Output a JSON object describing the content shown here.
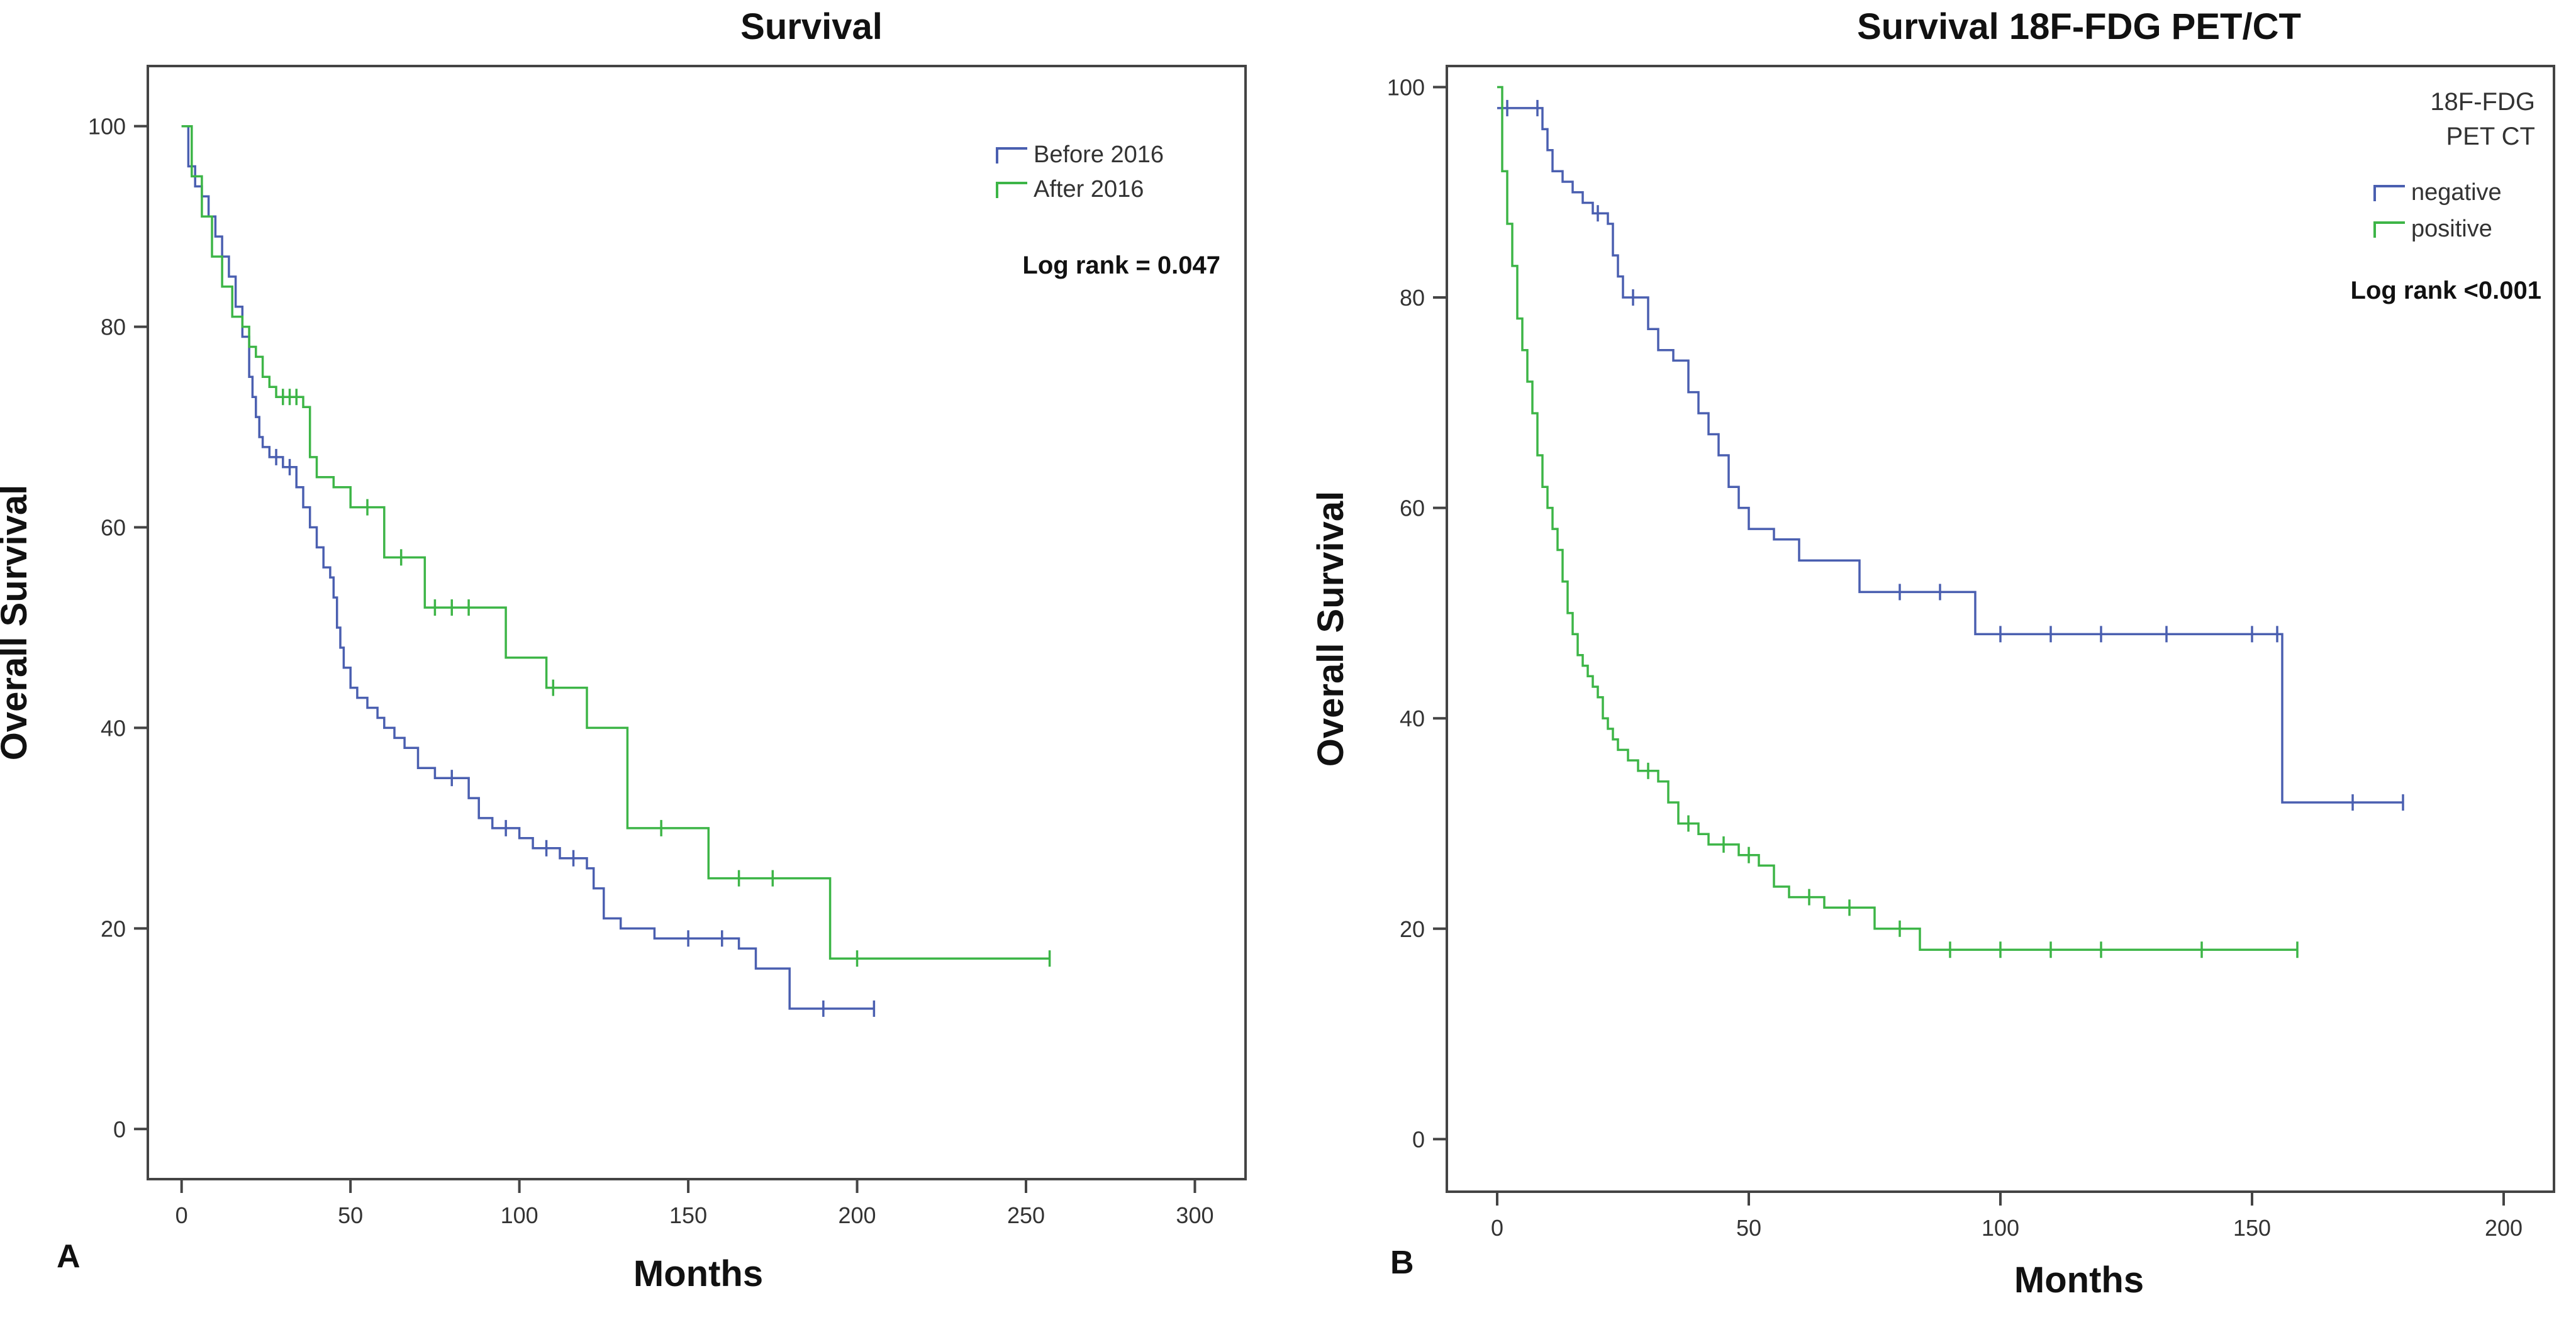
{
  "chart_data": [
    {
      "type": "line",
      "panel_label": "A",
      "title": "Survival",
      "xlabel": "Months",
      "ylabel": "Overall Survival",
      "xlim": [
        -10,
        315
      ],
      "ylim": [
        -5,
        106
      ],
      "xticks": [
        0,
        50,
        100,
        150,
        200,
        250,
        300
      ],
      "yticks": [
        0,
        20,
        40,
        60,
        80,
        100
      ],
      "annotation": "Log rank = 0.047",
      "legend_title": "",
      "legend_position": "top-right",
      "series": [
        {
          "name": "Before 2016",
          "color": "#4a5fb0",
          "x": [
            0,
            2,
            4,
            6,
            8,
            10,
            12,
            14,
            16,
            18,
            20,
            21,
            22,
            23,
            24,
            26,
            28,
            30,
            32,
            34,
            36,
            38,
            40,
            42,
            44,
            45,
            46,
            47,
            48,
            50,
            52,
            55,
            58,
            60,
            63,
            66,
            70,
            75,
            80,
            85,
            88,
            92,
            96,
            100,
            104,
            108,
            112,
            116,
            120,
            122,
            125,
            130,
            140,
            150,
            160,
            165,
            170,
            180,
            190,
            205
          ],
          "y": [
            100,
            96,
            94,
            93,
            91,
            89,
            87,
            85,
            82,
            79,
            75,
            73,
            71,
            69,
            68,
            67,
            67,
            66,
            66,
            64,
            62,
            60,
            58,
            56,
            55,
            53,
            50,
            48,
            46,
            44,
            43,
            42,
            41,
            40,
            39,
            38,
            36,
            35,
            35,
            33,
            31,
            30,
            30,
            29,
            28,
            28,
            27,
            27,
            26,
            24,
            21,
            20,
            19,
            19,
            19,
            18,
            16,
            12,
            12,
            12
          ]
        },
        {
          "name": "After 2016",
          "color": "#3db547",
          "x": [
            0,
            3,
            6,
            9,
            12,
            15,
            18,
            20,
            22,
            24,
            26,
            28,
            30,
            32,
            34,
            36,
            38,
            40,
            45,
            50,
            55,
            60,
            65,
            72,
            75,
            80,
            85,
            96,
            108,
            110,
            120,
            132,
            142,
            156,
            165,
            175,
            192,
            200,
            257
          ],
          "y": [
            100,
            95,
            91,
            87,
            84,
            81,
            80,
            78,
            77,
            75,
            74,
            73,
            73,
            73,
            73,
            72,
            67,
            65,
            64,
            62,
            62,
            57,
            57,
            52,
            52,
            52,
            52,
            47,
            44,
            44,
            40,
            30,
            30,
            25,
            25,
            25,
            17,
            17,
            17
          ]
        }
      ]
    },
    {
      "type": "line",
      "panel_label": "B",
      "title": "Survival  18F-FDG PET/CT",
      "xlabel": "Months",
      "ylabel": "Overall Survival",
      "xlim": [
        -10,
        210
      ],
      "ylim": [
        -5,
        102
      ],
      "xticks": [
        0,
        50,
        100,
        150,
        200
      ],
      "yticks": [
        0,
        20,
        40,
        60,
        80,
        100
      ],
      "annotation": "Log rank <0.001",
      "legend_title_lines": [
        "18F-FDG",
        "PET CT"
      ],
      "legend_position": "top-right",
      "series": [
        {
          "name": "negative",
          "color": "#4a5fb0",
          "x": [
            0,
            2,
            8,
            9,
            10,
            11,
            13,
            15,
            17,
            19,
            20,
            22,
            23,
            24,
            25,
            27,
            30,
            32,
            35,
            38,
            40,
            42,
            44,
            46,
            48,
            50,
            55,
            60,
            72,
            80,
            88,
            95,
            100,
            110,
            120,
            133,
            150,
            155,
            156,
            170,
            180
          ],
          "y": [
            98,
            98,
            98,
            96,
            94,
            92,
            91,
            90,
            89,
            88,
            88,
            87,
            84,
            82,
            80,
            80,
            77,
            75,
            74,
            71,
            69,
            67,
            65,
            62,
            60,
            58,
            57,
            55,
            52,
            52,
            52,
            48,
            48,
            48,
            48,
            48,
            48,
            48,
            32,
            32,
            32
          ]
        },
        {
          "name": "positive",
          "color": "#3db547",
          "x": [
            0,
            1,
            2,
            3,
            4,
            5,
            6,
            7,
            8,
            9,
            10,
            11,
            12,
            13,
            14,
            15,
            16,
            17,
            18,
            19,
            20,
            21,
            22,
            23,
            24,
            26,
            28,
            30,
            32,
            34,
            36,
            38,
            40,
            42,
            45,
            48,
            50,
            52,
            55,
            58,
            62,
            65,
            70,
            75,
            80,
            84,
            90,
            100,
            110,
            120,
            140,
            159
          ],
          "y": [
            100,
            92,
            87,
            83,
            78,
            75,
            72,
            69,
            65,
            62,
            60,
            58,
            56,
            53,
            50,
            48,
            46,
            45,
            44,
            43,
            42,
            40,
            39,
            38,
            37,
            36,
            35,
            35,
            34,
            32,
            30,
            30,
            29,
            28,
            28,
            27,
            27,
            26,
            24,
            23,
            23,
            22,
            22,
            20,
            20,
            18,
            18,
            18,
            18,
            18,
            18,
            18
          ]
        }
      ]
    }
  ]
}
